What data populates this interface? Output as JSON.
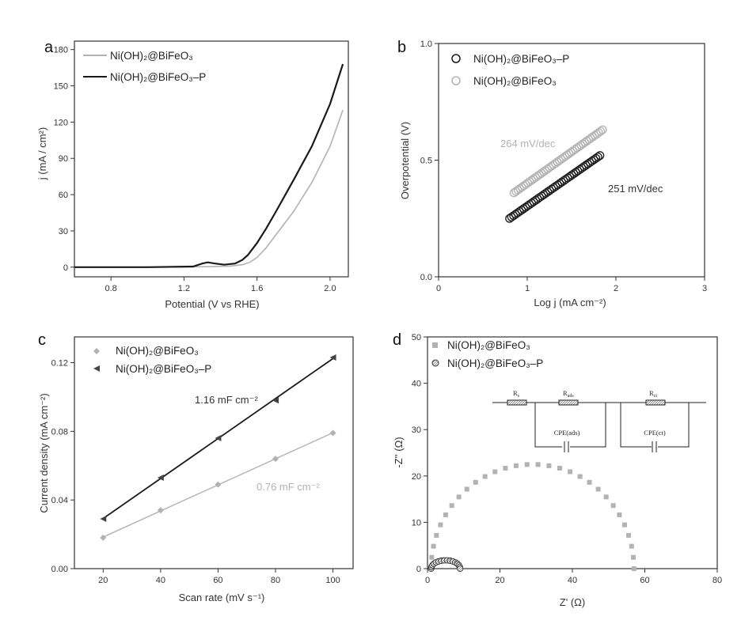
{
  "colors": {
    "light": "#b2b2b2",
    "dark": "#1a1a1a",
    "axis": "#333333"
  },
  "chart_data": [
    {
      "panel": "a",
      "type": "line",
      "xlabel": "Potential (V vs RHE)",
      "ylabel": "j (mA / cm²)",
      "xlim": [
        0.6,
        2.1
      ],
      "ylim": [
        -8,
        187
      ],
      "xticks": [
        0.8,
        1.2,
        1.6,
        2.0
      ],
      "xtick_labels": [
        "0.8",
        "1.2",
        "1.6",
        "2.0"
      ],
      "yticks": [
        0,
        30,
        60,
        90,
        120,
        150,
        180
      ],
      "ytick_labels": [
        "0",
        "30",
        "60",
        "90",
        "120",
        "150",
        "180"
      ],
      "legend_position": "top-left",
      "series": [
        {
          "name": "Ni(OH)₂@BiFeO₃",
          "style": "light",
          "x": [
            0.6,
            1.0,
            1.3,
            1.45,
            1.52,
            1.56,
            1.6,
            1.65,
            1.7,
            1.8,
            1.9,
            2.0,
            2.07
          ],
          "y": [
            0,
            0,
            0.3,
            0.8,
            2,
            4,
            8,
            16,
            26,
            46,
            70,
            100,
            130
          ]
        },
        {
          "name": "Ni(OH)₂@BiFeO₃–P",
          "style": "dark",
          "x": [
            0.6,
            1.0,
            1.25,
            1.3,
            1.33,
            1.37,
            1.42,
            1.48,
            1.52,
            1.55,
            1.6,
            1.65,
            1.7,
            1.8,
            1.9,
            2.0,
            2.07
          ],
          "y": [
            0,
            0,
            0.5,
            3,
            4,
            3,
            2,
            3,
            6,
            10,
            20,
            32,
            45,
            72,
            100,
            135,
            168
          ]
        }
      ]
    },
    {
      "panel": "b",
      "type": "scatter",
      "xlabel": "Log j (mA cm⁻²)",
      "ylabel": "Overpotential (V)",
      "xlim": [
        0,
        3
      ],
      "ylim": [
        0,
        1.0
      ],
      "xticks": [
        0,
        1,
        2,
        3
      ],
      "xtick_labels": [
        "0",
        "1",
        "2",
        "3"
      ],
      "yticks": [
        0,
        0.5,
        1.0
      ],
      "ytick_labels": [
        "0.0",
        "0.5",
        "1.0"
      ],
      "legend_position": "top-left",
      "series": [
        {
          "name": "Ni(OH)₂@BiFeO₃–P",
          "style": "dark",
          "marker": "circle",
          "x_range": [
            0.8,
            1.82
          ],
          "y_range": [
            0.25,
            0.52
          ],
          "slope_label": "251 mV/dec"
        },
        {
          "name": "Ni(OH)₂@BiFeO₃",
          "style": "light",
          "marker": "circle",
          "x_range": [
            0.85,
            1.85
          ],
          "y_range": [
            0.36,
            0.63
          ],
          "slope_label": "264 mV/dec"
        }
      ]
    },
    {
      "panel": "c",
      "type": "scatter",
      "xlabel": "Scan rate (mV s⁻¹)",
      "ylabel": "Current density (mA cm⁻²)",
      "xlim": [
        10,
        107
      ],
      "ylim": [
        0,
        0.135
      ],
      "xticks": [
        20,
        40,
        60,
        80,
        100
      ],
      "xtick_labels": [
        "20",
        "40",
        "60",
        "80",
        "100"
      ],
      "yticks": [
        0,
        0.04,
        0.08,
        0.12
      ],
      "ytick_labels": [
        "0.00",
        "0.04",
        "0.08",
        "0.12"
      ],
      "legend_position": "top-left",
      "series": [
        {
          "name": "Ni(OH)₂@BiFeO₃",
          "style": "light",
          "marker": "diamond",
          "x": [
            20,
            40,
            60,
            80,
            100
          ],
          "y": [
            0.018,
            0.034,
            0.049,
            0.064,
            0.079
          ],
          "slope_label": "0.76 mF cm⁻²"
        },
        {
          "name": "Ni(OH)₂@BiFeO₃–P",
          "style": "dark",
          "marker": "triangle",
          "x": [
            20,
            40,
            60,
            80,
            100
          ],
          "y": [
            0.029,
            0.053,
            0.076,
            0.098,
            0.123
          ],
          "slope_label": "1.16 mF cm⁻²"
        }
      ]
    },
    {
      "panel": "d",
      "type": "scatter",
      "xlabel": "Z' (Ω)",
      "ylabel": "-Z'' (Ω)",
      "xlim": [
        0,
        80
      ],
      "ylim": [
        0,
        50
      ],
      "xticks": [
        0,
        20,
        40,
        60,
        80
      ],
      "xtick_labels": [
        "0",
        "20",
        "40",
        "60",
        "80"
      ],
      "yticks": [
        0,
        10,
        20,
        30,
        40,
        50
      ],
      "ytick_labels": [
        "0",
        "10",
        "20",
        "30",
        "40",
        "50"
      ],
      "legend_position": "top-left",
      "series": [
        {
          "name": "Ni(OH)₂@BiFeO₃",
          "style": "light",
          "marker": "square",
          "arc": {
            "x_start": 1,
            "x_end": 57,
            "peak": 22.5,
            "points": 30
          }
        },
        {
          "name": "Ni(OH)₂@BiFeO₃–P",
          "style": "dark",
          "marker": "circle",
          "arc": {
            "x_start": 1,
            "x_end": 9,
            "peak": 1.8,
            "points": 16
          }
        }
      ],
      "inset_circuit": {
        "labels": [
          "R",
          "R",
          "R",
          "CPE(ads)",
          "CPE(ct)"
        ],
        "subscripts": [
          "s",
          "ads",
          "ct",
          "",
          ""
        ]
      }
    }
  ]
}
